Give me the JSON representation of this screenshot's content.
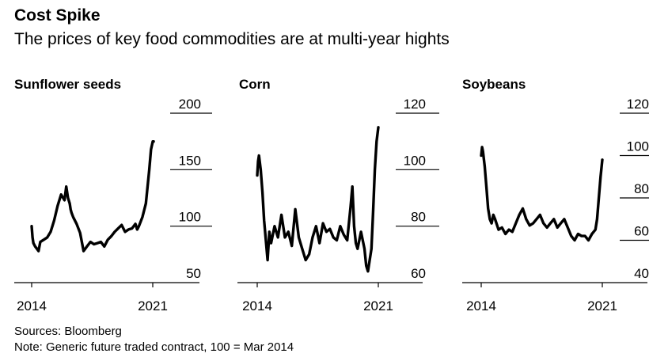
{
  "title": "Cost Spike",
  "subtitle": "The prices of key food commodities are at multi-year hights",
  "footer": {
    "sources": "Sources: Bloomberg",
    "note": "Note: Generic future traded contract, 100 = Mar 2014"
  },
  "colors": {
    "line": "#000000",
    "axis": "#000000",
    "background": "#ffffff"
  },
  "chart_data": [
    {
      "type": "line",
      "title": "Sunflower seeds",
      "xlim": [
        2014.0,
        2021.3
      ],
      "x_ticks": [
        "2014",
        "2021"
      ],
      "ylim": [
        50,
        200
      ],
      "y_ticks": [
        50,
        100,
        150,
        200
      ],
      "series": [
        {
          "x": [
            2014.0,
            2014.05,
            2014.1,
            2014.2,
            2014.3,
            2014.4,
            2014.5,
            2014.7,
            2014.9,
            2015.1,
            2015.3,
            2015.5,
            2015.7,
            2015.9,
            2016.0,
            2016.1,
            2016.2,
            2016.25,
            2016.3,
            2016.4,
            2016.6,
            2016.8,
            2017.0,
            2017.2,
            2017.4,
            2017.6,
            2017.8,
            2018.0,
            2018.2,
            2018.4,
            2018.6,
            2018.8,
            2019.0,
            2019.2,
            2019.4,
            2019.6,
            2019.8,
            2020.0,
            2020.1,
            2020.2,
            2020.3,
            2020.4,
            2020.6,
            2020.8,
            2020.9,
            2021.0,
            2021.05
          ],
          "y": [
            100,
            90,
            85,
            82,
            80,
            78,
            86,
            88,
            90,
            95,
            105,
            118,
            128,
            123,
            135,
            125,
            120,
            115,
            112,
            108,
            102,
            94,
            78,
            82,
            86,
            84,
            85,
            86,
            82,
            88,
            91,
            95,
            98,
            101,
            95,
            97,
            98,
            102,
            97,
            100,
            104,
            108,
            120,
            150,
            168,
            175,
            175
          ]
        }
      ]
    },
    {
      "type": "line",
      "title": "Corn",
      "xlim": [
        2014.0,
        2021.3
      ],
      "x_ticks": [
        "2014",
        "2021"
      ],
      "ylim": [
        60,
        120
      ],
      "y_ticks": [
        60,
        80,
        100,
        120
      ],
      "series": [
        {
          "x": [
            2014.0,
            2014.05,
            2014.1,
            2014.2,
            2014.3,
            2014.4,
            2014.5,
            2014.6,
            2014.7,
            2014.8,
            2015.0,
            2015.2,
            2015.4,
            2015.6,
            2015.8,
            2016.0,
            2016.2,
            2016.4,
            2016.6,
            2016.8,
            2017.0,
            2017.2,
            2017.4,
            2017.6,
            2017.8,
            2018.0,
            2018.2,
            2018.4,
            2018.6,
            2018.8,
            2019.0,
            2019.2,
            2019.4,
            2019.5,
            2019.6,
            2019.7,
            2019.8,
            2020.0,
            2020.2,
            2020.3,
            2020.4,
            2020.5,
            2020.6,
            2020.7,
            2020.8,
            2020.9,
            2021.0
          ],
          "y": [
            98,
            103,
            105,
            100,
            92,
            82,
            75,
            68,
            78,
            74,
            80,
            76,
            84,
            76,
            78,
            73,
            86,
            76,
            72,
            68,
            70,
            76,
            80,
            74,
            81,
            78,
            79,
            76,
            75,
            80,
            77,
            75,
            87,
            94,
            80,
            74,
            72,
            78,
            72,
            66,
            64,
            68,
            72,
            85,
            100,
            110,
            115
          ]
        }
      ]
    },
    {
      "type": "line",
      "title": "Soybeans",
      "xlim": [
        2014.0,
        2021.3
      ],
      "x_ticks": [
        "2014",
        "2021"
      ],
      "ylim": [
        40,
        120
      ],
      "y_ticks": [
        40,
        60,
        80,
        100,
        120
      ],
      "series": [
        {
          "x": [
            2014.0,
            2014.05,
            2014.1,
            2014.2,
            2014.3,
            2014.4,
            2014.5,
            2014.6,
            2014.7,
            2014.8,
            2015.0,
            2015.2,
            2015.4,
            2015.6,
            2015.8,
            2016.0,
            2016.2,
            2016.4,
            2016.6,
            2016.8,
            2017.0,
            2017.2,
            2017.4,
            2017.6,
            2017.8,
            2018.0,
            2018.2,
            2018.4,
            2018.6,
            2018.8,
            2019.0,
            2019.2,
            2019.4,
            2019.6,
            2019.8,
            2020.0,
            2020.2,
            2020.4,
            2020.5,
            2020.6,
            2020.7,
            2020.8,
            2020.9,
            2021.0
          ],
          "y": [
            100,
            104,
            102,
            95,
            85,
            75,
            70,
            68,
            72,
            70,
            65,
            66,
            63,
            65,
            64,
            68,
            72,
            75,
            70,
            67,
            68,
            70,
            72,
            68,
            66,
            68,
            70,
            66,
            68,
            70,
            66,
            62,
            60,
            63,
            62,
            62,
            60,
            63,
            64,
            65,
            70,
            80,
            90,
            98
          ]
        }
      ]
    }
  ]
}
